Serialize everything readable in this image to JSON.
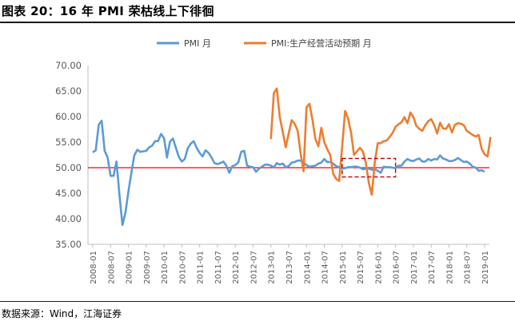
{
  "figure": {
    "title": "图表 20：16 年 PMI 荣枯线上下徘徊",
    "source": "数据来源：Wind，江海证券"
  },
  "chart_data": {
    "type": "line",
    "title": "",
    "xlabel": "",
    "ylabel": "",
    "ylim": [
      35,
      70
    ],
    "yticks": [
      "70.00",
      "65.00",
      "60.00",
      "55.00",
      "50.00",
      "45.00",
      "40.00",
      "35.00"
    ],
    "xticks": [
      "2008-01",
      "2008-07",
      "2009-01",
      "2009-07",
      "2010-01",
      "2010-07",
      "2011-01",
      "2011-07",
      "2012-01",
      "2012-07",
      "2013-01",
      "2013-07",
      "2014-01",
      "2014-07",
      "2015-01",
      "2015-07",
      "2016-01",
      "2016-07",
      "2017-01",
      "2017-07",
      "2018-01",
      "2018-07",
      "2019-01"
    ],
    "grid": false,
    "legend": "top",
    "reference_line": {
      "value": 50,
      "color": "#ff0000"
    },
    "highlight_box": {
      "x": [
        "2015-01",
        "2016-07"
      ],
      "y": [
        48.2,
        51.8
      ],
      "color": "#c00000"
    },
    "series": [
      {
        "name": "PMI 月",
        "color": "#5b9bd5",
        "start": "2008-01",
        "values": [
          53.0,
          53.4,
          58.4,
          59.2,
          53.3,
          52.0,
          48.4,
          48.4,
          51.2,
          44.6,
          38.8,
          41.2,
          45.3,
          49.0,
          52.4,
          53.5,
          53.1,
          53.2,
          53.3,
          54.0,
          54.3,
          55.2,
          55.2,
          56.6,
          55.8,
          52.0,
          55.1,
          55.7,
          53.9,
          52.1,
          51.2,
          51.7,
          53.8,
          54.7,
          55.2,
          53.9,
          52.9,
          52.2,
          53.4,
          52.9,
          52.0,
          50.9,
          50.7,
          50.9,
          51.2,
          50.4,
          49.0,
          50.3,
          50.5,
          51.0,
          53.1,
          53.3,
          50.4,
          50.2,
          50.1,
          49.2,
          49.8,
          50.2,
          50.6,
          50.6,
          50.4,
          50.1,
          50.9,
          50.6,
          50.8,
          50.1,
          50.3,
          51.0,
          51.1,
          51.4,
          51.4,
          51.0,
          50.5,
          50.2,
          50.3,
          50.4,
          50.8,
          51.0,
          51.7,
          51.1,
          51.1,
          50.8,
          50.3,
          50.1,
          49.8,
          49.9,
          50.1,
          50.1,
          50.2,
          50.2,
          50.0,
          49.7,
          49.8,
          49.8,
          49.6,
          49.7,
          49.4,
          49.0,
          50.2,
          50.1,
          50.1,
          50.0,
          49.9,
          50.4,
          50.4,
          51.2,
          51.7,
          51.4,
          51.3,
          51.6,
          51.8,
          51.2,
          51.2,
          51.7,
          51.4,
          51.7,
          51.6,
          52.4,
          51.8,
          51.6,
          51.3,
          51.3,
          51.5,
          51.9,
          51.5,
          51.1,
          51.2,
          50.8,
          50.2,
          50.0,
          49.4,
          49.5,
          49.2
        ]
      },
      {
        "name": "PMI:生产经营活动预期 月",
        "color": "#ed7d31",
        "start": "2013-01",
        "values": [
          55.6,
          64.6,
          65.5,
          59.9,
          57.0,
          54.0,
          56.7,
          59.3,
          58.6,
          57.3,
          52.9,
          49.3,
          61.8,
          62.5,
          59.4,
          55.6,
          54.2,
          57.8,
          55.0,
          53.6,
          52.5,
          48.8,
          47.8,
          47.4,
          54.0,
          61.1,
          59.6,
          56.9,
          52.5,
          53.2,
          53.9,
          53.2,
          50.9,
          47.0,
          44.7,
          51.0,
          54.8,
          54.8,
          55.2,
          55.3,
          56.0,
          56.8,
          58.0,
          58.5,
          58.9,
          59.9,
          58.7,
          60.8,
          59.9,
          58.2,
          57.6,
          57.2,
          58.3,
          59.1,
          59.5,
          58.4,
          56.7,
          58.8,
          57.7,
          57.6,
          58.5,
          56.9,
          58.4,
          58.7,
          58.6,
          58.3,
          57.2,
          56.8,
          56.4,
          56.1,
          56.4,
          53.7,
          52.6,
          52.2,
          56.0
        ]
      }
    ]
  }
}
